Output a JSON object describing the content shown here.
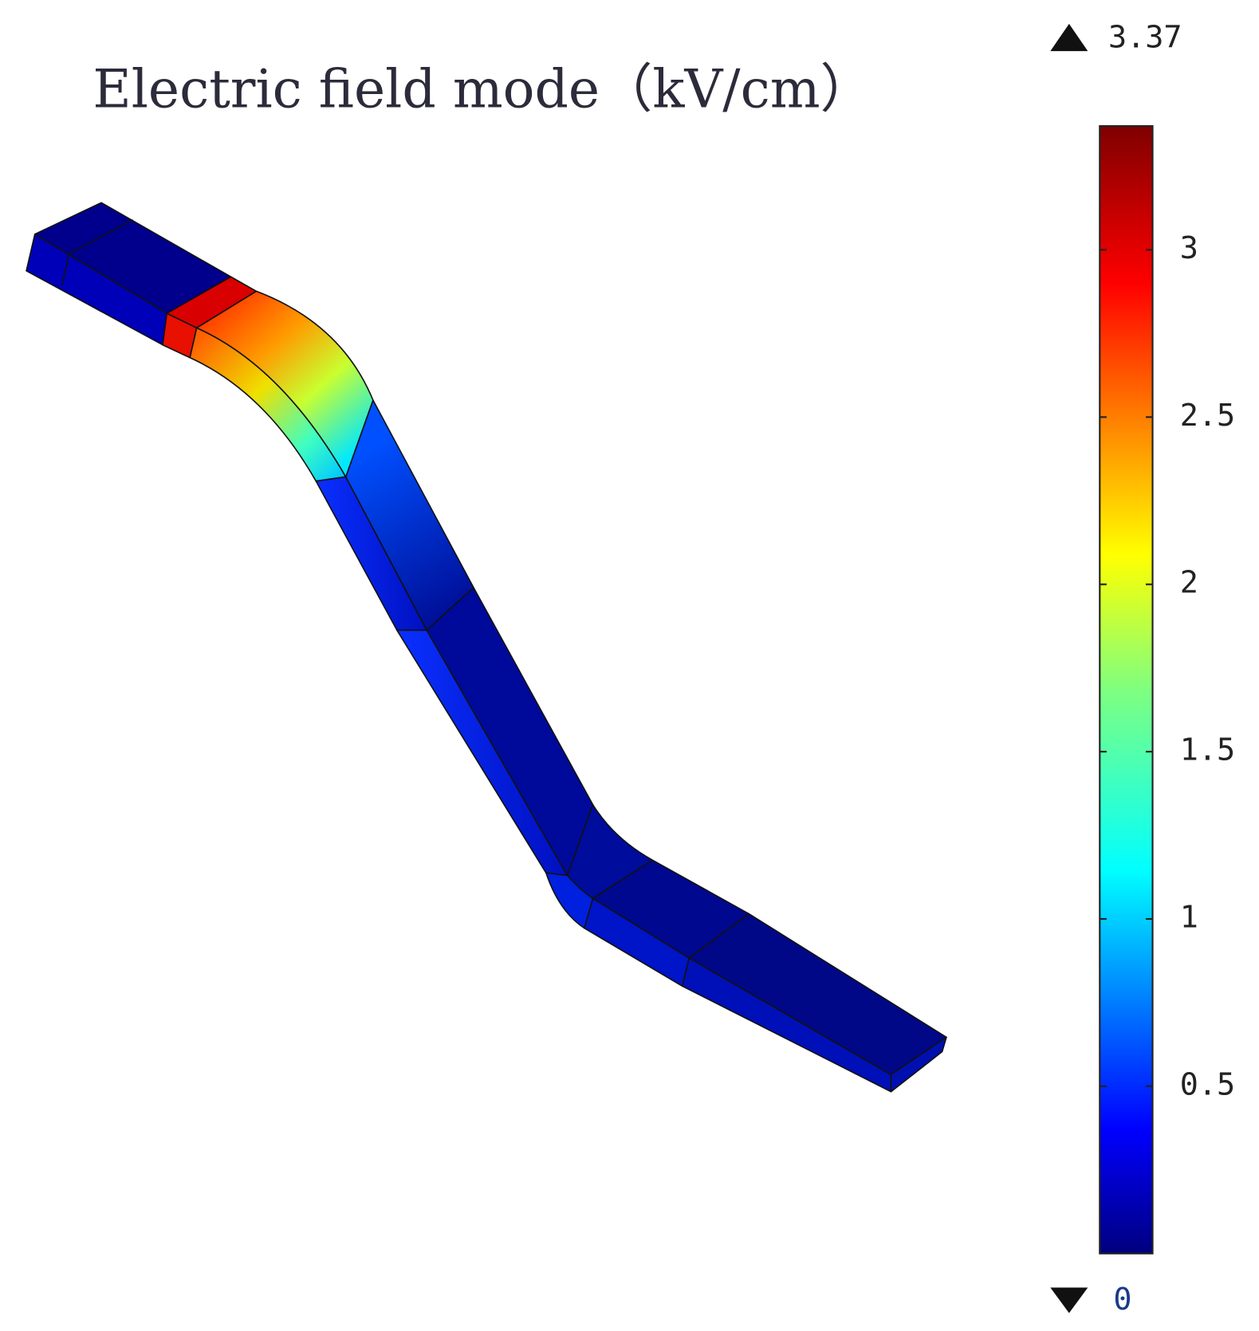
{
  "chart_data": {
    "type": "colormap",
    "title": "Electric field mode（kV/cm）",
    "clim": [
      0,
      3.37
    ],
    "cticks": [
      0.5,
      1,
      1.5,
      2,
      2.5,
      3
    ],
    "colormap": "jet"
  }
}
